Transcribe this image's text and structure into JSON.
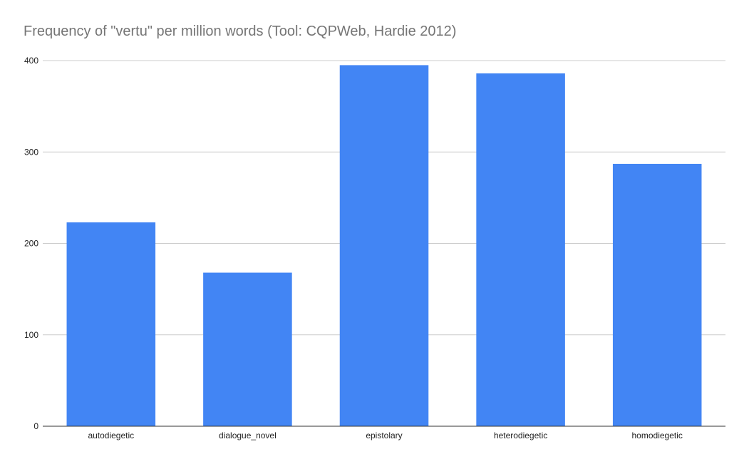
{
  "chart_data": {
    "type": "bar",
    "title": "Frequency of \"vertu\" per million words (Tool: CQPWeb, Hardie 2012)",
    "xlabel": "",
    "ylabel": "",
    "categories": [
      "autodiegetic",
      "dialogue_novel",
      "epistolary",
      "heterodiegetic",
      "homodiegetic"
    ],
    "values": [
      223,
      168,
      395,
      386,
      287
    ],
    "yticks": [
      0,
      100,
      200,
      300,
      400
    ],
    "ylim": [
      0,
      400
    ],
    "bar_color": "#4285f4",
    "grid": true,
    "legend": "none"
  }
}
